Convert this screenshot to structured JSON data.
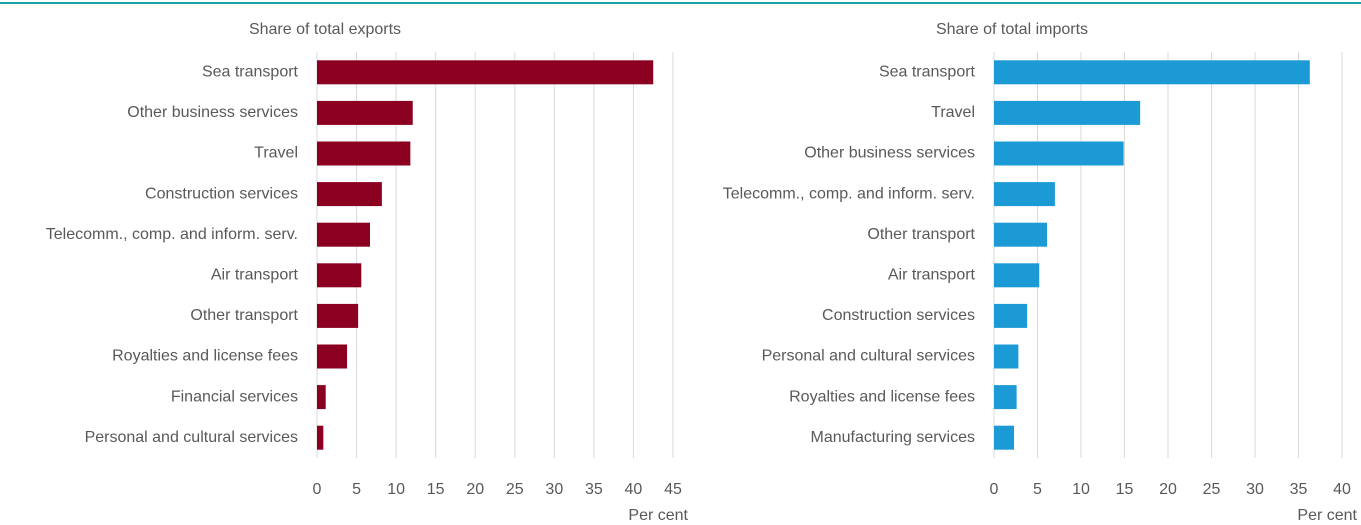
{
  "chart_data": [
    {
      "type": "bar",
      "orientation": "horizontal",
      "title": "Share of total exports",
      "x_label": "Per cent",
      "color": "#8b0021",
      "categories": [
        "Sea transport",
        "Other business services",
        "Travel",
        "Construction services",
        "Telecomm., comp. and inform. serv.",
        "Air transport",
        "Other transport",
        "Royalties and license fees",
        "Financial services",
        "Personal and cultural services"
      ],
      "values": [
        42.5,
        12.1,
        11.8,
        8.2,
        6.7,
        5.6,
        5.2,
        3.8,
        1.1,
        0.8
      ],
      "xlim": [
        0,
        45
      ],
      "xticks": [
        0,
        5,
        10,
        15,
        20,
        25,
        30,
        35,
        40,
        45
      ],
      "grid": true
    },
    {
      "type": "bar",
      "orientation": "horizontal",
      "title": "Share of total imports",
      "x_label": "Per cent",
      "color": "#1b9ad6",
      "categories": [
        "Sea transport",
        "Travel",
        "Other business services",
        "Telecomm., comp. and inform. serv.",
        "Other transport",
        "Air transport",
        "Construction services",
        "Personal and cultural services",
        "Royalties and license fees",
        "Manufacturing services"
      ],
      "values": [
        36.3,
        16.8,
        14.9,
        7.0,
        6.1,
        5.2,
        3.8,
        2.8,
        2.6,
        2.3
      ],
      "xlim": [
        0,
        40
      ],
      "xticks": [
        0,
        5,
        10,
        15,
        20,
        25,
        30,
        35,
        40
      ],
      "grid": true
    }
  ]
}
